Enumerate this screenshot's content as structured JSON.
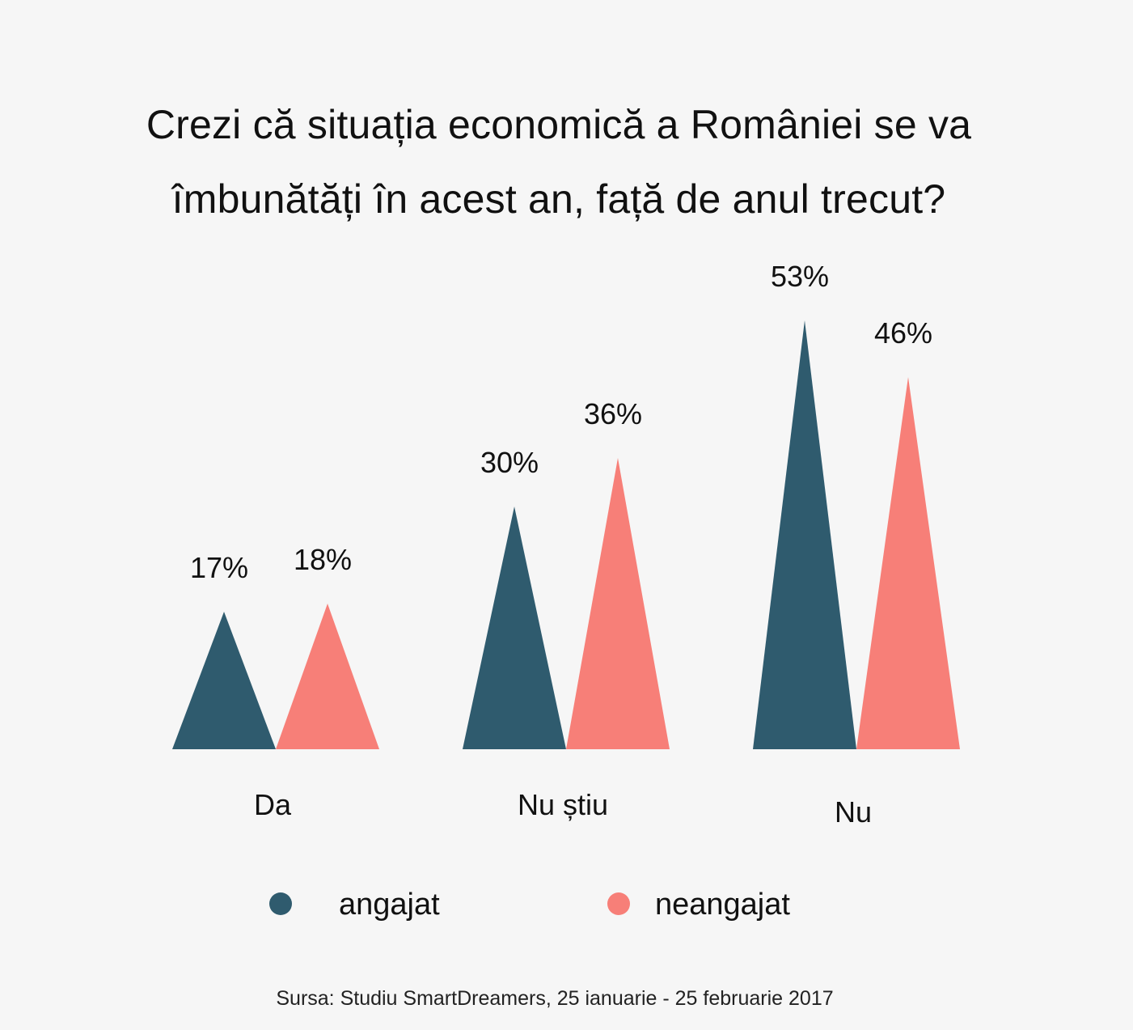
{
  "chart_data": {
    "type": "bar",
    "title_lines": [
      "Crezi că situația economică a României se va",
      "îmbunătăți în acest an, față de anul trecut?"
    ],
    "categories": [
      "Da",
      "Nu știu",
      "Nu"
    ],
    "series": [
      {
        "name": "angajat",
        "color": "#2f5b6e",
        "values": [
          17,
          30,
          53
        ],
        "labels": [
          "17%",
          "30%",
          "53%"
        ]
      },
      {
        "name": "neangajat",
        "color": "#f77f78",
        "values": [
          18,
          36,
          46
        ],
        "labels": [
          "18%",
          "36%",
          "46%"
        ]
      }
    ],
    "value_suffix": "%",
    "bar_shape": "triangle",
    "legend_position": "bottom",
    "grid": false,
    "source": "Sursa: Studiu SmartDreamers, 25 ianuarie - 25 februarie 2017"
  }
}
